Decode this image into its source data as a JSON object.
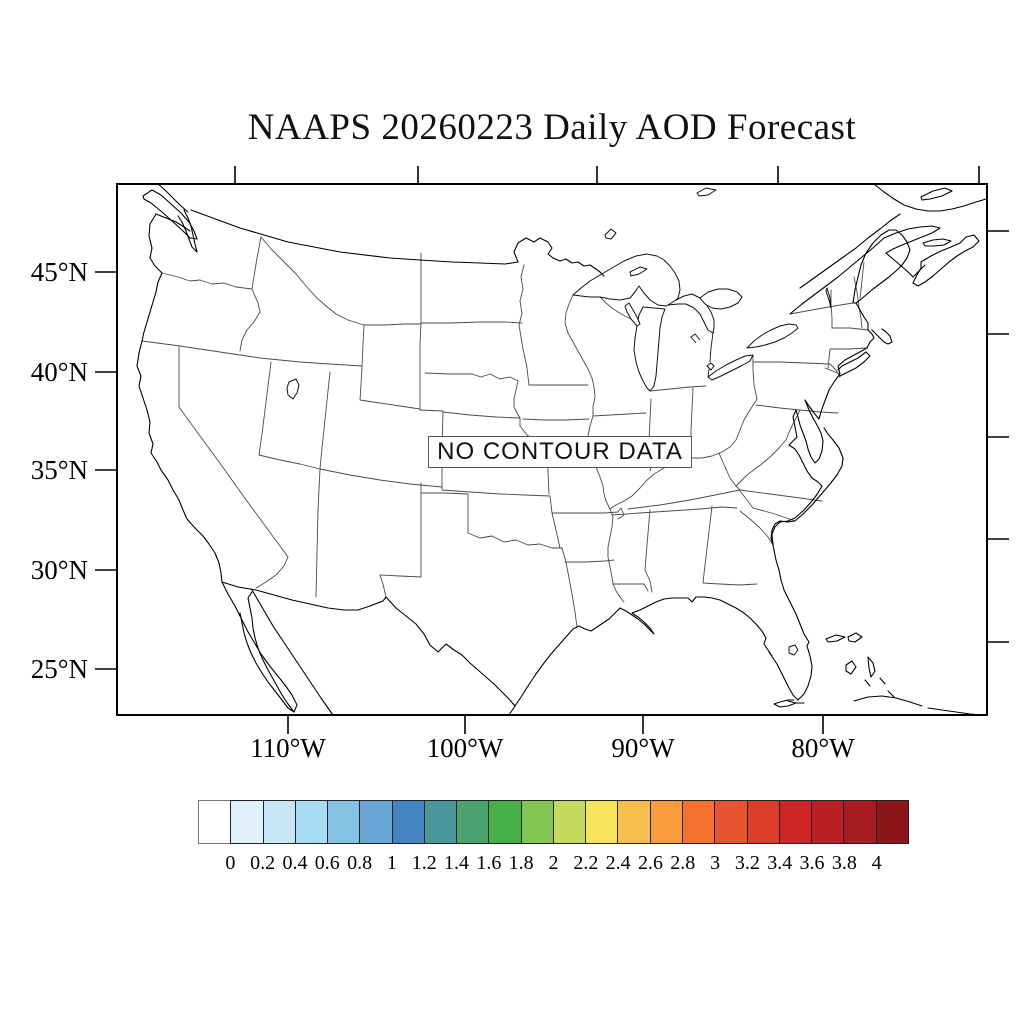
{
  "title": "NAAPS 20260223 Daily AOD Forecast",
  "map": {
    "no_data_label": "NO CONTOUR DATA",
    "region_name": "CONUS United States with state boundaries, southern Canada and northern Mexico coastlines"
  },
  "axes": {
    "lat_labels": [
      "45°N",
      "40°N",
      "35°N",
      "30°N",
      "25°N"
    ],
    "lon_labels": [
      "110°W",
      "100°W",
      "90°W",
      "80°W"
    ]
  },
  "colorbar": {
    "tick_labels": [
      "0",
      "0.2",
      "0.4",
      "0.6",
      "0.8",
      "1",
      "1.2",
      "1.4",
      "1.6",
      "1.8",
      "2",
      "2.2",
      "2.4",
      "2.6",
      "2.8",
      "3",
      "3.2",
      "3.4",
      "3.6",
      "3.8",
      "4"
    ],
    "cell_colors": [
      "#FFFFFF",
      "#E0F1F9",
      "#C6E6F5",
      "#A6DBF3",
      "#83C2E2",
      "#66A5D4",
      "#4384C3",
      "#4A989B",
      "#4BA36F",
      "#46AF46",
      "#82C553",
      "#C4DA5E",
      "#F5E35B",
      "#F7BE4D",
      "#F89B3B",
      "#F7712E",
      "#E85430",
      "#DD3C2B",
      "#D02527",
      "#BB2026",
      "#A51C21",
      "#8C171B"
    ]
  },
  "chart_data": {
    "type": "heatmap",
    "title": "NAAPS 20260223 Daily AOD Forecast",
    "status": "NO CONTOUR DATA",
    "values": [],
    "lat_ticks": [
      45,
      40,
      35,
      30,
      25
    ],
    "lon_ticks": [
      -110,
      -100,
      -90,
      -80
    ],
    "colorbar_levels": [
      0,
      0.2,
      0.4,
      0.6,
      0.8,
      1,
      1.2,
      1.4,
      1.6,
      1.8,
      2,
      2.2,
      2.4,
      2.6,
      2.8,
      3,
      3.2,
      3.4,
      3.6,
      3.8,
      4
    ],
    "legend_position": "bottom"
  }
}
